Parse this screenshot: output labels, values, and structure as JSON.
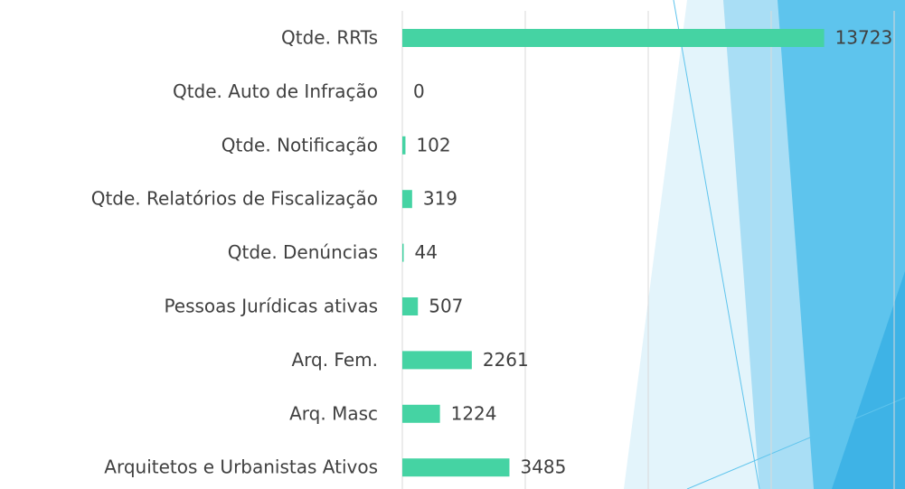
{
  "chart_data": {
    "type": "bar",
    "orientation": "horizontal",
    "categories": [
      "Qtde. RRTs",
      "Qtde. Auto de Infração",
      "Qtde. Notificação",
      "Qtde. Relatórios de Fiscalização",
      "Qtde. Denúncias",
      "Pessoas Jurídicas ativas",
      "Arq. Fem.",
      "Arq. Masc",
      "Arquitetos e Urbanistas Ativos"
    ],
    "values": [
      13723,
      0,
      102,
      319,
      44,
      507,
      2261,
      1224,
      3485
    ],
    "color": "#45d3a3",
    "xlim": [
      0,
      16000
    ],
    "xticks": [
      0,
      4000,
      8000,
      12000,
      16000
    ],
    "grid": true
  }
}
